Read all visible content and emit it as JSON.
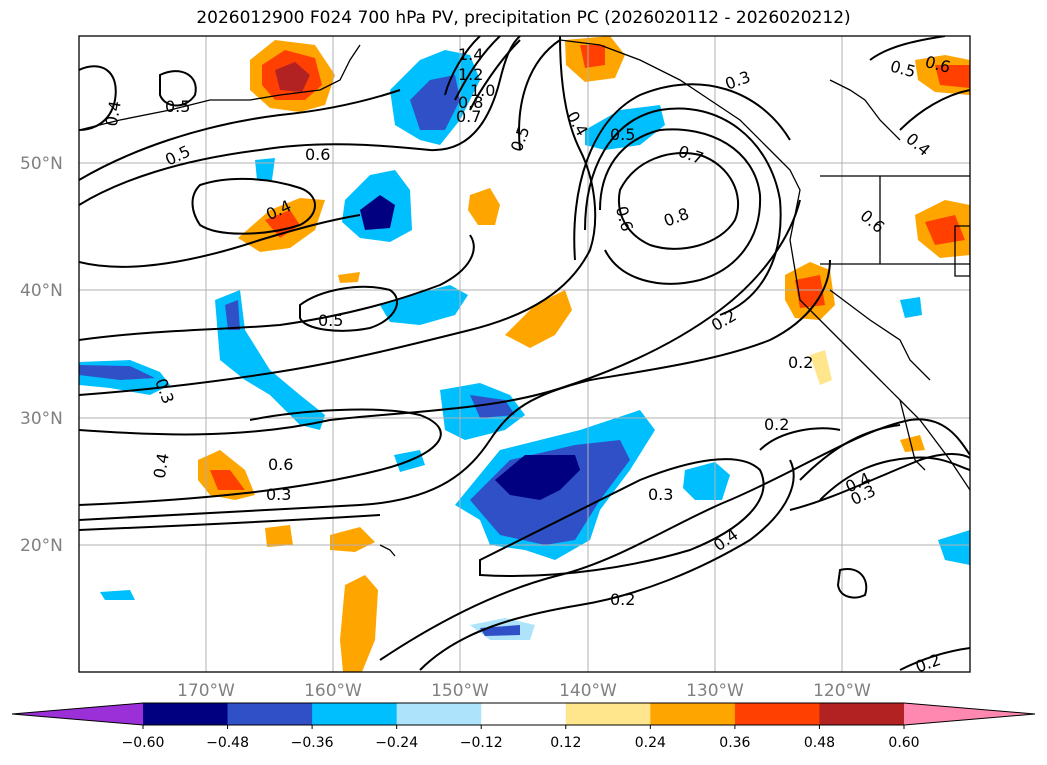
{
  "title": "2026012900 F024 700 hPa PV, precipitation PC (2026020112 - 2026020212)",
  "lat_labels": [
    "50°N",
    "40°N",
    "30°N",
    "20°N"
  ],
  "lon_labels": [
    "170°W",
    "160°W",
    "150°W",
    "140°W",
    "130°W",
    "120°W"
  ],
  "contour_labels": [
    "0.4",
    "0.5",
    "0.5",
    "0.6",
    "1.4",
    "1.2",
    "1.0",
    "0.8",
    "0.7",
    "0.5",
    "0.4",
    "0.5",
    "0.3",
    "0.7",
    "0.6",
    "0.8",
    "0.6",
    "0.4",
    "0.5",
    "0.6",
    "0.4",
    "0.2",
    "0.2",
    "0.3",
    "0.4",
    "0.2",
    "0.3",
    "0.4",
    "0.3",
    "0.4",
    "0.2",
    "0.2",
    "0.5",
    "0.6",
    "0.3"
  ],
  "colorbar": {
    "ticks": [
      "−0.60",
      "−0.48",
      "−0.36",
      "−0.24",
      "−0.12",
      "0.12",
      "0.24",
      "0.36",
      "0.48",
      "0.60"
    ],
    "colors": [
      "#9b30d9",
      "#000080",
      "#3050c8",
      "#00bfff",
      "#aee4fb",
      "#ffffff",
      "#ffe68c",
      "#ffa500",
      "#ff4000",
      "#b22222",
      "#ff88b0"
    ]
  }
}
